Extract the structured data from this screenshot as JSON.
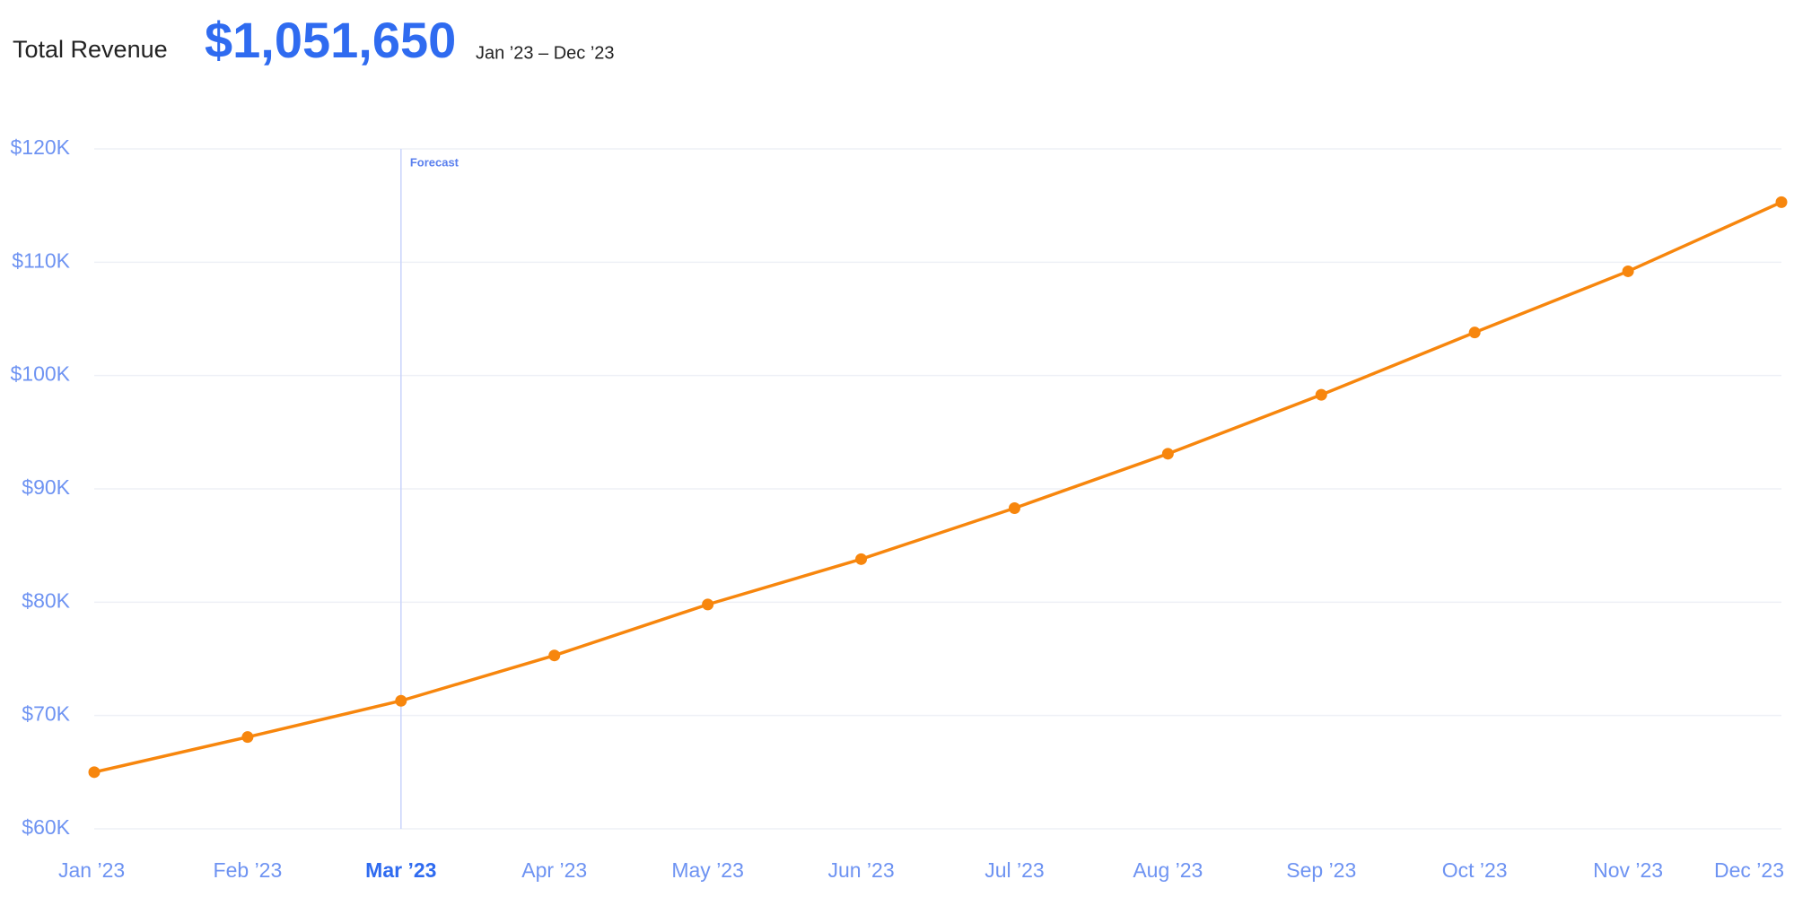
{
  "header": {
    "label": "Total Revenue",
    "total": "$1,051,650",
    "range": "Jan ’23 – Dec ’23"
  },
  "chart_data": {
    "type": "line",
    "categories": [
      "Jan ’23",
      "Feb ’23",
      "Mar ’23",
      "Apr ’23",
      "May ’23",
      "Jun ’23",
      "Jul ’23",
      "Aug ’23",
      "Sep ’23",
      "Oct ’23",
      "Nov ’23",
      "Dec ’23"
    ],
    "series": [
      {
        "name": "Revenue",
        "color": "#f7860d",
        "values": [
          65000,
          68100,
          71300,
          75300,
          79800,
          83800,
          88300,
          93100,
          98300,
          103800,
          109200,
          115300
        ]
      }
    ],
    "ylim": [
      60000,
      120000
    ],
    "yticks": [
      {
        "value": 60000,
        "label": "$60K"
      },
      {
        "value": 70000,
        "label": "$70K"
      },
      {
        "value": 80000,
        "label": "$80K"
      },
      {
        "value": 90000,
        "label": "$90K"
      },
      {
        "value": 100000,
        "label": "$100K"
      },
      {
        "value": 110000,
        "label": "$110K"
      },
      {
        "value": 120000,
        "label": "$120K"
      }
    ],
    "grid": true,
    "annotation": {
      "text": "Forecast",
      "x": "Mar ’23"
    }
  }
}
